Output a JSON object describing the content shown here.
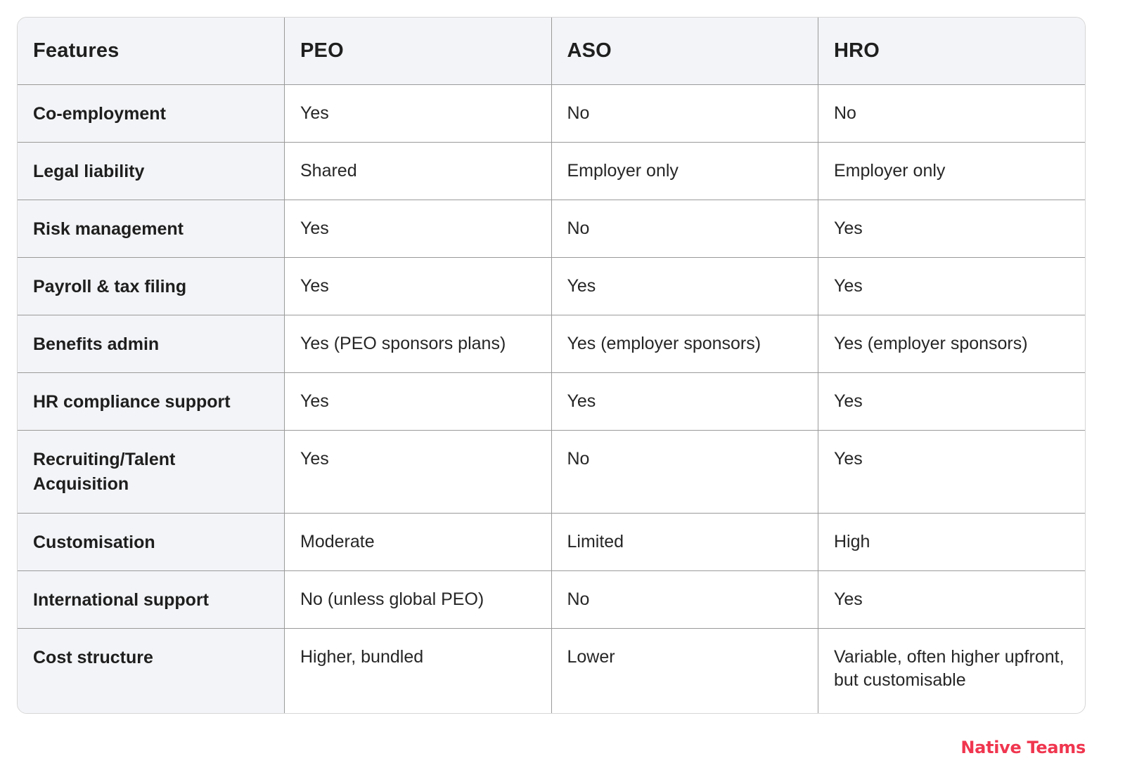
{
  "table": {
    "headers": [
      "Features",
      "PEO",
      "ASO",
      "HRO"
    ],
    "rows": [
      {
        "feature": "Co-employment",
        "peo": "Yes",
        "aso": "No",
        "hro": "No"
      },
      {
        "feature": "Legal liability",
        "peo": "Shared",
        "aso": "Employer only",
        "hro": "Employer only"
      },
      {
        "feature": "Risk management",
        "peo": "Yes",
        "aso": "No",
        "hro": "Yes"
      },
      {
        "feature": "Payroll & tax filing",
        "peo": "Yes",
        "aso": "Yes",
        "hro": "Yes"
      },
      {
        "feature": "Benefits admin",
        "peo": "Yes (PEO sponsors plans)",
        "aso": "Yes (employer sponsors)",
        "hro": "Yes (employer sponsors)"
      },
      {
        "feature": "HR compliance support",
        "peo": "Yes",
        "aso": "Yes",
        "hro": "Yes"
      },
      {
        "feature": "Recruiting/Talent Acquisition",
        "peo": "Yes",
        "aso": "No",
        "hro": "Yes"
      },
      {
        "feature": "Customisation",
        "peo": "Moderate",
        "aso": "Limited",
        "hro": "High"
      },
      {
        "feature": "International support",
        "peo": "No (unless global PEO)",
        "aso": "No",
        "hro": "Yes"
      },
      {
        "feature": "Cost structure",
        "peo": "Higher, bundled",
        "aso": "Lower",
        "hro": "Variable, often higher upfront, but customisable"
      }
    ]
  },
  "brand": {
    "name": "Native Teams",
    "color": "#f0364f"
  }
}
